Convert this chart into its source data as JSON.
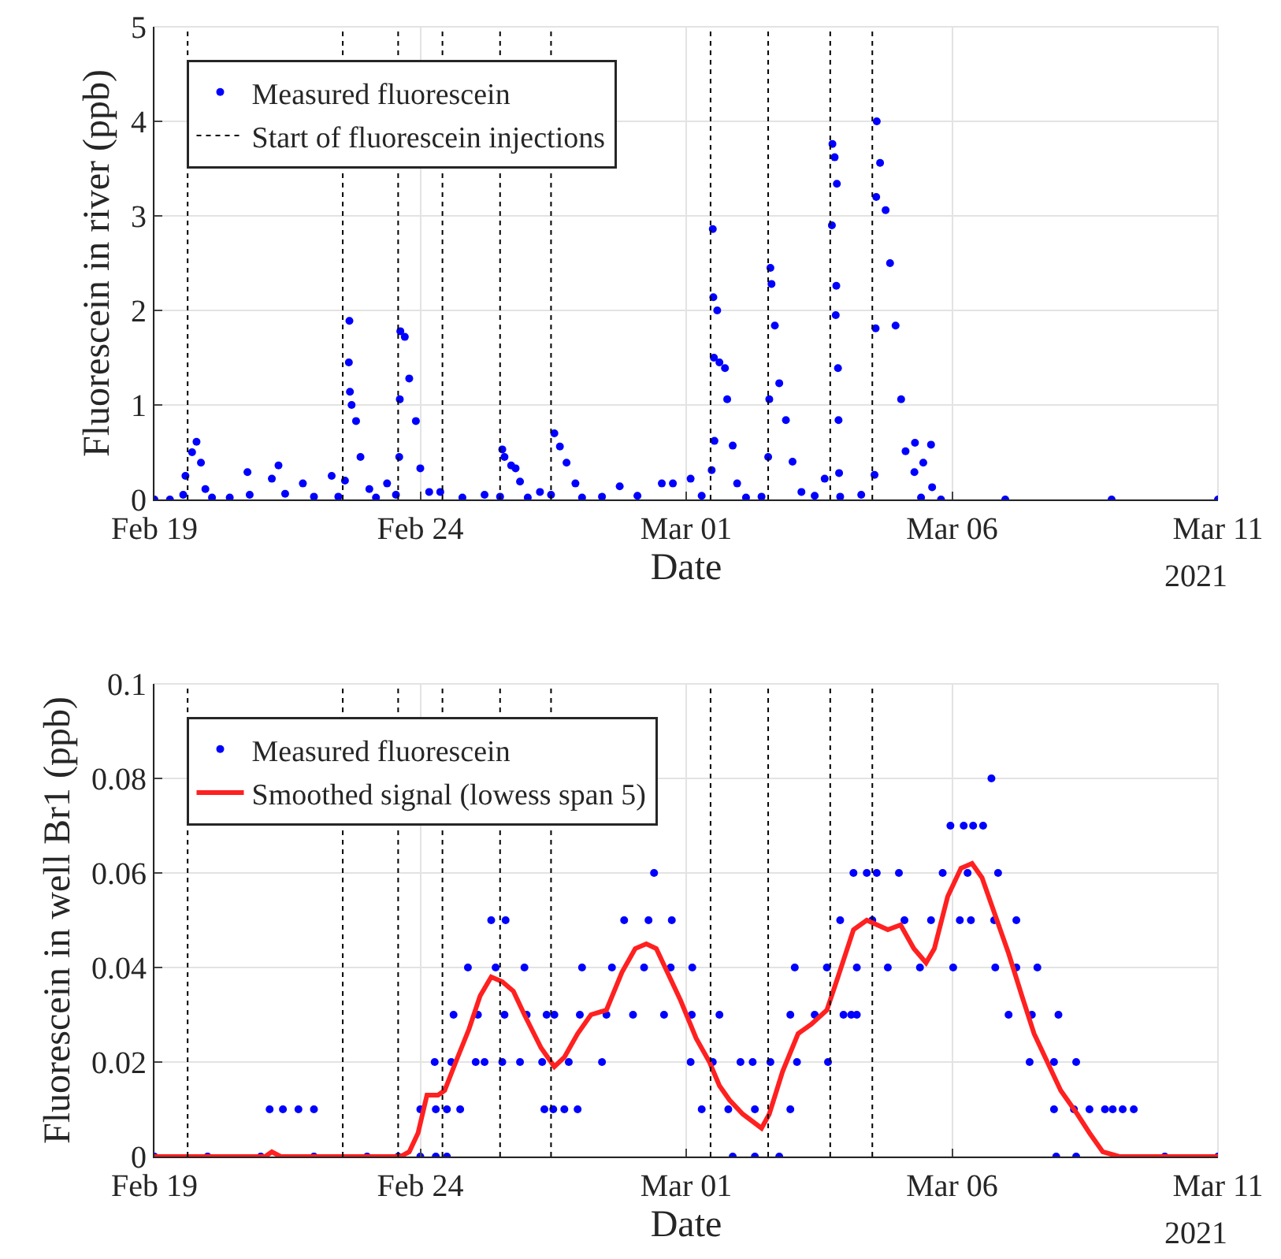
{
  "chart_data": [
    {
      "type": "scatter",
      "xlabel": "Date",
      "ylabel": "Fluorescein in river (ppb)",
      "xlim": [
        "2021-02-19",
        "2021-03-11"
      ],
      "ylim": [
        0,
        5
      ],
      "yticks": [
        0,
        1,
        2,
        3,
        4,
        5
      ],
      "xticks": [
        {
          "value": "2021-02-19",
          "label": "Feb 19"
        },
        {
          "value": "2021-02-24",
          "label": "Feb 24"
        },
        {
          "value": "2021-03-01",
          "label": "Mar 01"
        },
        {
          "value": "2021-03-06",
          "label": "Mar 06"
        },
        {
          "value": "2021-03-11",
          "label": "Mar 11"
        }
      ],
      "grid": true,
      "legend": "top left",
      "marker": "circle",
      "annotations": [
        "2021"
      ],
      "series": [
        {
          "name": "Measured fluorescein",
          "color": "#0000ff",
          "x": [
            "2021-02-19T00:00",
            "2021-02-19T07:00",
            "2021-02-19T13:00",
            "2021-02-19T14:00",
            "2021-02-19T17:00",
            "2021-02-19T19:00",
            "2021-02-19T21:00",
            "2021-02-19T23:00",
            "2021-02-20T02:00",
            "2021-02-20T10:00",
            "2021-02-20T18:00",
            "2021-02-20T19:00",
            "2021-02-21T05:00",
            "2021-02-21T08:00",
            "2021-02-21T11:00",
            "2021-02-21T19:00",
            "2021-02-22T00:00",
            "2021-02-22T08:00",
            "2021-02-22T11:00",
            "2021-02-22T14:00",
            "2021-02-22T15:45",
            "2021-02-22T16:00",
            "2021-02-22T16:15",
            "2021-02-22T17:00",
            "2021-02-22T19:00",
            "2021-02-22T21:00",
            "2021-02-23T01:00",
            "2021-02-23T04:00",
            "2021-02-23T09:00",
            "2021-02-23T13:00",
            "2021-02-23T14:30",
            "2021-02-23T14:45",
            "2021-02-23T15:00",
            "2021-02-23T17:00",
            "2021-02-23T19:00",
            "2021-02-23T22:00",
            "2021-02-24T00:00",
            "2021-02-24T04:00",
            "2021-02-24T09:00",
            "2021-02-24T19:00",
            "2021-02-25T05:00",
            "2021-02-25T12:00",
            "2021-02-25T13:00",
            "2021-02-25T14:00",
            "2021-02-25T17:00",
            "2021-02-25T19:00",
            "2021-02-25T21:00",
            "2021-02-26T00:30",
            "2021-02-26T06:00",
            "2021-02-26T11:00",
            "2021-02-26T12:30",
            "2021-02-26T15:00",
            "2021-02-26T18:00",
            "2021-02-26T22:00",
            "2021-02-27T01:00",
            "2021-02-27T10:00",
            "2021-02-27T18:00",
            "2021-02-28T02:00",
            "2021-02-28T13:00",
            "2021-02-28T18:00",
            "2021-03-01T02:00",
            "2021-03-01T07:00",
            "2021-03-01T11:30",
            "2021-03-01T12:00",
            "2021-03-01T12:15",
            "2021-03-01T12:30",
            "2021-03-01T12:45",
            "2021-03-01T14:00",
            "2021-03-01T15:00",
            "2021-03-01T17:30",
            "2021-03-01T18:30",
            "2021-03-01T21:00",
            "2021-03-01T23:00",
            "2021-03-02T03:00",
            "2021-03-02T10:00",
            "2021-03-02T13:00",
            "2021-03-02T13:30",
            "2021-03-02T14:00",
            "2021-03-02T14:30",
            "2021-03-02T16:00",
            "2021-03-02T18:00",
            "2021-03-02T21:00",
            "2021-03-03T00:00",
            "2021-03-03T04:00",
            "2021-03-03T10:00",
            "2021-03-03T14:30",
            "2021-03-03T17:45",
            "2021-03-03T18:00",
            "2021-03-03T19:00",
            "2021-03-03T20:00",
            "2021-03-03T19:45",
            "2021-03-03T19:30",
            "2021-03-03T20:30",
            "2021-03-03T20:45",
            "2021-03-03T21:00",
            "2021-03-03T21:30",
            "2021-03-04T07:00",
            "2021-03-04T13:00",
            "2021-03-04T13:30",
            "2021-03-04T13:45",
            "2021-03-04T14:00",
            "2021-03-04T15:30",
            "2021-03-04T18:00",
            "2021-03-04T20:00",
            "2021-03-04T22:30",
            "2021-03-05T01:00",
            "2021-03-05T03:00",
            "2021-03-05T07:00",
            "2021-03-05T07:15",
            "2021-03-05T10:00",
            "2021-03-05T11:00",
            "2021-03-05T14:30",
            "2021-03-05T15:00",
            "2021-03-05T19:00",
            "2021-03-07T00:00",
            "2021-03-09T00:00",
            "2021-03-11T00:00"
          ],
          "values": [
            0,
            0,
            0.05,
            0.25,
            0.5,
            0.61,
            0.39,
            0.11,
            0.02,
            0.02,
            0.29,
            0.05,
            0.22,
            0.36,
            0.06,
            0.17,
            0.03,
            0.25,
            0.03,
            0.2,
            1.45,
            1.89,
            1.14,
            1.0,
            0.83,
            0.45,
            0.11,
            0.02,
            0.17,
            0.05,
            0.45,
            1.06,
            1.78,
            1.72,
            1.28,
            0.83,
            0.33,
            0.08,
            0.08,
            0.02,
            0.05,
            0.03,
            0.53,
            0.45,
            0.36,
            0.33,
            0.19,
            0.02,
            0.08,
            0.05,
            0.7,
            0.56,
            0.39,
            0.17,
            0.02,
            0.03,
            0.14,
            0.04,
            0.17,
            0.17,
            0.22,
            0.04,
            0.31,
            2.86,
            2.14,
            1.5,
            0.62,
            2.0,
            1.45,
            1.39,
            1.06,
            0.57,
            0.17,
            0.02,
            0.03,
            0.45,
            1.06,
            2.45,
            2.28,
            1.84,
            1.23,
            0.84,
            0.4,
            0.08,
            0.04,
            0.22,
            2.9,
            3.76,
            3.62,
            3.34,
            2.26,
            1.95,
            1.39,
            0.84,
            0.28,
            0.03,
            0.05,
            0.26,
            1.81,
            3.2,
            4.0,
            3.56,
            3.06,
            2.5,
            1.84,
            1.06,
            0.51,
            0.29,
            0.6,
            0.02,
            0.39,
            0.58,
            0.13,
            0,
            0,
            0,
            0
          ]
        }
      ],
      "ref_lines": [
        {
          "axis": "x",
          "value": "2021-02-19T15:00",
          "label": "Start of fluorescein injections",
          "color": "#000000",
          "line_style": "dotted"
        },
        {
          "axis": "x",
          "value": "2021-02-22T13:00",
          "label": null,
          "color": "#000000",
          "line_style": "dotted"
        },
        {
          "axis": "x",
          "value": "2021-02-23T14:00",
          "label": null,
          "color": "#000000",
          "line_style": "dotted"
        },
        {
          "axis": "x",
          "value": "2021-02-24T10:00",
          "label": null,
          "color": "#000000",
          "line_style": "dotted"
        },
        {
          "axis": "x",
          "value": "2021-02-25T12:00",
          "label": null,
          "color": "#000000",
          "line_style": "dotted"
        },
        {
          "axis": "x",
          "value": "2021-02-26T11:00",
          "label": null,
          "color": "#000000",
          "line_style": "dotted"
        },
        {
          "axis": "x",
          "value": "2021-03-01T11:00",
          "label": null,
          "color": "#000000",
          "line_style": "dotted"
        },
        {
          "axis": "x",
          "value": "2021-03-02T13:00",
          "label": null,
          "color": "#000000",
          "line_style": "dotted"
        },
        {
          "axis": "x",
          "value": "2021-03-03T17:00",
          "label": null,
          "color": "#000000",
          "line_style": "dotted"
        },
        {
          "axis": "x",
          "value": "2021-03-04T12:00",
          "label": null,
          "color": "#000000",
          "line_style": "dotted"
        }
      ]
    },
    {
      "type": "scatter",
      "xlabel": "Date",
      "ylabel": "Fluorescein in well Br1 (ppb)",
      "xlim": [
        "2021-02-19",
        "2021-03-11"
      ],
      "ylim": [
        0,
        0.1
      ],
      "yticks": [
        0,
        0.02,
        0.04,
        0.06,
        0.08,
        0.1
      ],
      "xticks": [
        {
          "value": "2021-02-19",
          "label": "Feb 19"
        },
        {
          "value": "2021-02-24",
          "label": "Feb 24"
        },
        {
          "value": "2021-03-01",
          "label": "Mar 01"
        },
        {
          "value": "2021-03-06",
          "label": "Mar 06"
        },
        {
          "value": "2021-03-11",
          "label": "Mar 11"
        }
      ],
      "grid": true,
      "legend": "top left",
      "marker": "circle",
      "line_style": "solid",
      "annotations": [
        "2021"
      ],
      "series": [
        {
          "name": "Measured fluorescein",
          "color": "#0000ff",
          "x": [
            "2021-02-19T00:00",
            "2021-02-20T00:00",
            "2021-02-21T00:00",
            "2021-02-22T00:00",
            "2021-02-23T00:00",
            "2021-02-23T14:00",
            "2021-02-24T00:00",
            "2021-02-24T07:00",
            "2021-02-24T12:00",
            "2021-03-01T21:00",
            "2021-03-02T07:00",
            "2021-03-02T18:00",
            "2021-03-07T23:00",
            "2021-03-08T08:00",
            "2021-03-10T00:00",
            "2021-03-11T00:00",
            "2021-02-21T04:00",
            "2021-02-21T10:00",
            "2021-02-21T17:00",
            "2021-02-22T00:00",
            "2021-02-24T00:00",
            "2021-02-24T07:00",
            "2021-02-24T12:00",
            "2021-02-24T18:00",
            "2021-02-26T08:00",
            "2021-02-26T12:00",
            "2021-02-26T17:00",
            "2021-02-26T23:00",
            "2021-03-01T07:00",
            "2021-03-01T19:00",
            "2021-03-02T07:00",
            "2021-03-02T23:00",
            "2021-03-07T22:00",
            "2021-03-08T07:00",
            "2021-03-08T14:00",
            "2021-03-08T21:00",
            "2021-03-09T00:30",
            "2021-03-09T05:00",
            "2021-03-09T10:00",
            "2021-02-24T06:30",
            "2021-02-24T14:00",
            "2021-02-25T01:00",
            "2021-02-25T05:00",
            "2021-02-25T13:00",
            "2021-02-25T21:00",
            "2021-02-26T07:00",
            "2021-02-26T19:00",
            "2021-02-27T10:00",
            "2021-03-01T02:00",
            "2021-03-01T12:00",
            "2021-03-02T00:30",
            "2021-03-02T06:00",
            "2021-03-02T14:00",
            "2021-03-03T02:00",
            "2021-03-03T16:00",
            "2021-03-07T11:00",
            "2021-03-07T22:00",
            "2021-03-08T08:00",
            "2021-02-24T15:00",
            "2021-02-25T02:00",
            "2021-02-25T14:00",
            "2021-02-26T00:00",
            "2021-02-26T09:00",
            "2021-02-26T12:30",
            "2021-02-27T00:00",
            "2021-02-27T12:00",
            "2021-02-28T00:00",
            "2021-02-28T14:00",
            "2021-03-01T02:30",
            "2021-03-01T15:00",
            "2021-03-02T23:00",
            "2021-03-03T10:00",
            "2021-03-03T23:00",
            "2021-03-04T02:30",
            "2021-03-04T05:00",
            "2021-03-07T01:30",
            "2021-03-07T12:00",
            "2021-03-08T00:00",
            "2021-02-24T21:30",
            "2021-02-25T10:00",
            "2021-02-25T23:00",
            "2021-02-27T01:00",
            "2021-02-27T14:30",
            "2021-02-28T05:00",
            "2021-02-28T17:00",
            "2021-03-01T02:45",
            "2021-03-03T01:00",
            "2021-03-03T15:30",
            "2021-03-04T05:00",
            "2021-03-04T19:00",
            "2021-03-05T09:30",
            "2021-03-06T00:30",
            "2021-03-06T19:30",
            "2021-03-07T05:00",
            "2021-03-07T14:30",
            "2021-02-25T08:00",
            "2021-02-25T14:30",
            "2021-02-27T20:00",
            "2021-02-28T07:00",
            "2021-02-28T17:30",
            "2021-03-03T21:30",
            "2021-03-04T12:00",
            "2021-03-05T02:30",
            "2021-03-05T14:30",
            "2021-03-06T03:30",
            "2021-03-06T08:30",
            "2021-03-06T19:00",
            "2021-03-07T05:00",
            "2021-02-28T09:30",
            "2021-03-04T03:30",
            "2021-03-04T09:30",
            "2021-03-04T14:00",
            "2021-03-05T00:00",
            "2021-03-05T19:45",
            "2021-03-06T07:00",
            "2021-03-06T20:45",
            "2021-03-05T23:15",
            "2021-03-06T05:15",
            "2021-03-06T09:30",
            "2021-03-06T14:00",
            "2021-03-06T17:45"
          ],
          "values": [
            0,
            0,
            0,
            0,
            0,
            0,
            0,
            0,
            0,
            0,
            0,
            0,
            0,
            0,
            0,
            0,
            0.01,
            0.01,
            0.01,
            0.01,
            0.01,
            0.01,
            0.01,
            0.01,
            0.01,
            0.01,
            0.01,
            0.01,
            0.01,
            0.01,
            0.01,
            0.01,
            0.01,
            0.01,
            0.01,
            0.01,
            0.01,
            0.01,
            0.01,
            0.02,
            0.02,
            0.02,
            0.02,
            0.02,
            0.02,
            0.02,
            0.02,
            0.02,
            0.02,
            0.02,
            0.02,
            0.02,
            0.02,
            0.02,
            0.02,
            0.02,
            0.02,
            0.02,
            0.03,
            0.03,
            0.03,
            0.03,
            0.03,
            0.03,
            0.03,
            0.03,
            0.03,
            0.03,
            0.03,
            0.03,
            0.03,
            0.03,
            0.03,
            0.03,
            0.03,
            0.03,
            0.03,
            0.03,
            0.04,
            0.04,
            0.04,
            0.04,
            0.04,
            0.04,
            0.04,
            0.04,
            0.04,
            0.04,
            0.04,
            0.04,
            0.04,
            0.04,
            0.04,
            0.04,
            0.04,
            0.05,
            0.05,
            0.05,
            0.05,
            0.05,
            0.05,
            0.05,
            0.05,
            0.05,
            0.05,
            0.05,
            0.05,
            0.05,
            0.06,
            0.06,
            0.06,
            0.06,
            0.06,
            0.06,
            0.06,
            0.06,
            0.07,
            0.07,
            0.07,
            0.07,
            0.08
          ]
        },
        {
          "name": "Smoothed signal (lowess span 5)",
          "color": "#ff2020",
          "type": "line",
          "marker": "none",
          "x": [
            "2021-02-19T00:00",
            "2021-02-21T02:00",
            "2021-02-21T05:00",
            "2021-02-21T09:00",
            "2021-02-21T19:00",
            "2021-02-22T04:00",
            "2021-02-23T15:00",
            "2021-02-23T19:00",
            "2021-02-23T23:00",
            "2021-02-24T03:00",
            "2021-02-24T08:00",
            "2021-02-24T11:00",
            "2021-02-24T16:00",
            "2021-02-24T22:00",
            "2021-02-25T03:00",
            "2021-02-25T08:00",
            "2021-02-25T13:00",
            "2021-02-25T18:00",
            "2021-02-25T23:00",
            "2021-02-26T06:30",
            "2021-02-26T12:30",
            "2021-02-26T17:00",
            "2021-02-26T23:00",
            "2021-02-27T05:00",
            "2021-02-27T12:00",
            "2021-02-27T19:00",
            "2021-02-28T01:00",
            "2021-02-28T06:00",
            "2021-02-28T10:30",
            "2021-02-28T15:30",
            "2021-02-28T21:30",
            "2021-03-01T04:30",
            "2021-03-01T10:30",
            "2021-03-01T15:00",
            "2021-03-01T19:30",
            "2021-03-02T01:30",
            "2021-03-02T10:00",
            "2021-03-02T13:30",
            "2021-03-02T19:30",
            "2021-03-03T02:30",
            "2021-03-03T08:30",
            "2021-03-03T15:30",
            "2021-03-03T20:30",
            "2021-03-04T03:30",
            "2021-03-04T09:30",
            "2021-03-04T19:00",
            "2021-03-05T00:45",
            "2021-03-05T06:45",
            "2021-03-05T12:15",
            "2021-03-05T16:00",
            "2021-03-05T22:00",
            "2021-03-06T04:00",
            "2021-03-06T09:00",
            "2021-03-06T13:30",
            "2021-03-06T19:30",
            "2021-03-07T01:30",
            "2021-03-07T07:30",
            "2021-03-07T13:00",
            "2021-03-07T19:00",
            "2021-03-08T01:00",
            "2021-03-08T08:30",
            "2021-03-08T14:00",
            "2021-03-08T20:00",
            "2021-03-09T03:30",
            "2021-03-11T00:00"
          ],
          "values": [
            0,
            0,
            0.001,
            0,
            0,
            0,
            0,
            0.001,
            0.005,
            0.013,
            0.013,
            0.014,
            0.02,
            0.027,
            0.034,
            0.038,
            0.037,
            0.035,
            0.03,
            0.023,
            0.019,
            0.021,
            0.026,
            0.03,
            0.031,
            0.039,
            0.044,
            0.045,
            0.044,
            0.039,
            0.033,
            0.025,
            0.02,
            0.015,
            0.012,
            0.009,
            0.006,
            0.009,
            0.018,
            0.026,
            0.028,
            0.031,
            0.038,
            0.048,
            0.05,
            0.048,
            0.049,
            0.044,
            0.041,
            0.044,
            0.055,
            0.061,
            0.062,
            0.059,
            0.051,
            0.043,
            0.034,
            0.026,
            0.02,
            0.014,
            0.009,
            0.005,
            0.001,
            0,
            0
          ]
        }
      ],
      "ref_lines": [
        {
          "axis": "x",
          "value": "2021-02-19T15:00",
          "color": "#000000",
          "line_style": "dotted"
        },
        {
          "axis": "x",
          "value": "2021-02-22T13:00",
          "color": "#000000",
          "line_style": "dotted"
        },
        {
          "axis": "x",
          "value": "2021-02-23T14:00",
          "color": "#000000",
          "line_style": "dotted"
        },
        {
          "axis": "x",
          "value": "2021-02-24T10:00",
          "color": "#000000",
          "line_style": "dotted"
        },
        {
          "axis": "x",
          "value": "2021-02-25T12:00",
          "color": "#000000",
          "line_style": "dotted"
        },
        {
          "axis": "x",
          "value": "2021-02-26T11:00",
          "color": "#000000",
          "line_style": "dotted"
        },
        {
          "axis": "x",
          "value": "2021-03-01T11:00",
          "color": "#000000",
          "line_style": "dotted"
        },
        {
          "axis": "x",
          "value": "2021-03-02T13:00",
          "color": "#000000",
          "line_style": "dotted"
        },
        {
          "axis": "x",
          "value": "2021-03-03T17:00",
          "color": "#000000",
          "line_style": "dotted"
        },
        {
          "axis": "x",
          "value": "2021-03-04T12:00",
          "color": "#000000",
          "line_style": "dotted"
        }
      ]
    }
  ]
}
